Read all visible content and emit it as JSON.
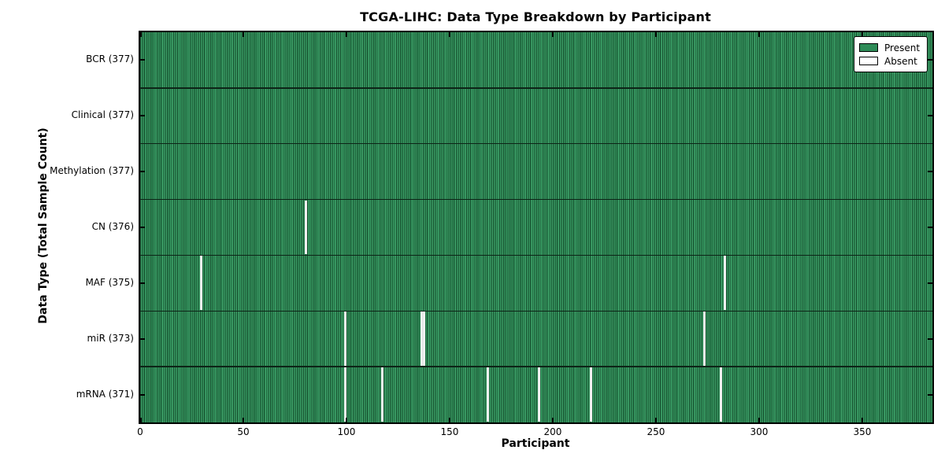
{
  "title": "TCGA-LIHC: Data Type Breakdown by Participant",
  "chart_data": {
    "type": "heatmap",
    "title": "TCGA-LIHC: Data Type Breakdown by Participant",
    "xlabel": "Participant",
    "ylabel": "Data Type (Total Sample Count)",
    "x_ticks": [
      0,
      50,
      100,
      150,
      200,
      250,
      300,
      350
    ],
    "xlim": [
      0,
      384
    ],
    "n_participants": 377,
    "grid": false,
    "legend_position": "upper right",
    "rows": [
      {
        "data_type": "BCR",
        "label": "BCR (377)",
        "present_count": 377,
        "absent_participants": []
      },
      {
        "data_type": "Clinical",
        "label": "Clinical (377)",
        "present_count": 377,
        "absent_participants": []
      },
      {
        "data_type": "Methylation",
        "label": "Methylation (377)",
        "present_count": 377,
        "absent_participants": []
      },
      {
        "data_type": "CN",
        "label": "CN (376)",
        "present_count": 376,
        "absent_participants": [
          80
        ]
      },
      {
        "data_type": "MAF",
        "label": "MAF (375)",
        "present_count": 375,
        "absent_participants": [
          29,
          283
        ]
      },
      {
        "data_type": "miR",
        "label": "miR (373)",
        "present_count": 373,
        "absent_participants": [
          99,
          136,
          137,
          273
        ]
      },
      {
        "data_type": "mRNA",
        "label": "mRNA (371)",
        "present_count": 371,
        "absent_participants": [
          99,
          117,
          168,
          193,
          218,
          281
        ]
      }
    ],
    "legend": {
      "entries": [
        {
          "label": "Present",
          "color": "#2e8b57"
        },
        {
          "label": "Absent",
          "color": "#ffffff"
        }
      ]
    },
    "colors": {
      "present": "#2e8b57",
      "present_dark": "#16502e",
      "present_light": "#3fa069",
      "absent": "#ffffff",
      "frame": "#000000"
    }
  }
}
